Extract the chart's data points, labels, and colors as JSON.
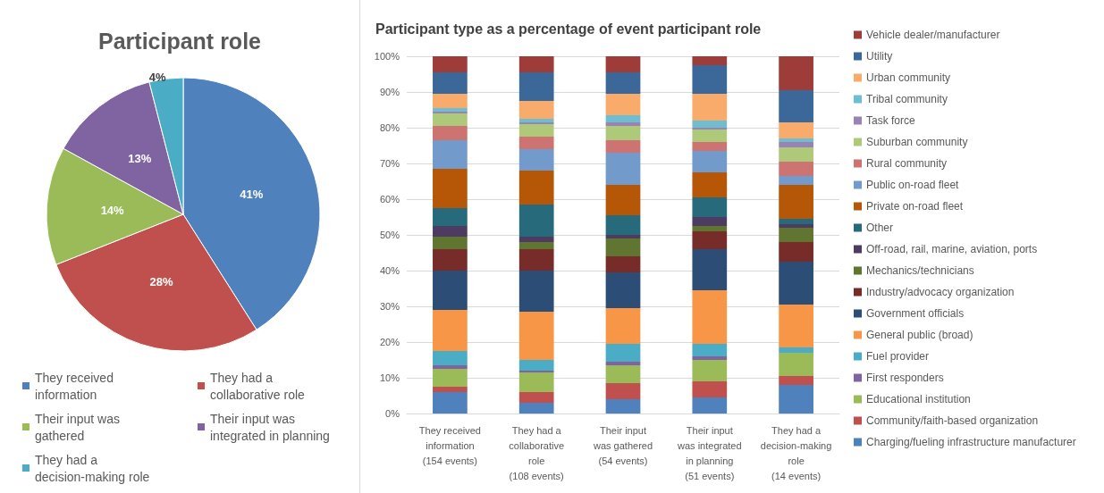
{
  "chart_data": [
    {
      "type": "pie",
      "title": "Participant role",
      "categories": [
        "They received information",
        "They had a collaborative role",
        "Their input was gathered",
        "Their input was integrated in planning",
        "They had a decision-making role"
      ],
      "values": [
        41,
        28,
        14,
        13,
        4
      ],
      "colors": [
        "#4f81bd",
        "#c0504d",
        "#9bbb59",
        "#8064a2",
        "#4bacc6"
      ],
      "value_labels": [
        "41%",
        "28%",
        "14%",
        "13%",
        "4%"
      ],
      "legend": "bottom"
    },
    {
      "type": "bar",
      "title": "Participant type as a percentage of event participant role",
      "categories": [
        "They received information (154 events)",
        "They had a collaborative role (108 events)",
        "Their input was gathered (54 events)",
        "Their input was integrated in planning (51 events)",
        "They had a decision-making role (14 events)"
      ],
      "series": [
        {
          "name": "Charging/fueling infrastructure manufacturer",
          "color": "#4f81bd",
          "values": [
            6,
            3,
            4,
            4.5,
            8
          ]
        },
        {
          "name": "Community/faith-based organization",
          "color": "#c0504d",
          "values": [
            1.5,
            3,
            4.5,
            4.5,
            2.5
          ]
        },
        {
          "name": "Educational institution",
          "color": "#9bbb59",
          "values": [
            5,
            5.5,
            5,
            6,
            6.5
          ]
        },
        {
          "name": "First responders",
          "color": "#8064a2",
          "values": [
            1,
            0.5,
            1,
            1,
            0
          ]
        },
        {
          "name": "Fuel provider",
          "color": "#4bacc6",
          "values": [
            4,
            3,
            5,
            3.5,
            1.5
          ]
        },
        {
          "name": "General public (broad)",
          "color": "#f79646",
          "values": [
            11.5,
            13.5,
            10,
            15,
            12
          ]
        },
        {
          "name": "Government officials",
          "color": "#2c4d75",
          "values": [
            11,
            11.5,
            10,
            11.5,
            12
          ]
        },
        {
          "name": "Industry/advocacy organization",
          "color": "#772c2a",
          "values": [
            6,
            6,
            4.5,
            5,
            5.5
          ]
        },
        {
          "name": "Mechanics/technicians",
          "color": "#5f7530",
          "values": [
            3.5,
            2,
            5,
            1.5,
            4
          ]
        },
        {
          "name": "Off-road, rail, marine, aviation, ports",
          "color": "#4d3b62",
          "values": [
            3,
            1.5,
            1,
            2.5,
            1
          ]
        },
        {
          "name": "Other",
          "color": "#276a7c",
          "values": [
            5,
            9,
            5.5,
            5.5,
            1.5
          ]
        },
        {
          "name": "Private on-road fleet",
          "color": "#b65708",
          "values": [
            11,
            9.5,
            8.5,
            7,
            9.5
          ]
        },
        {
          "name": "Public on-road fleet",
          "color": "#729aca",
          "values": [
            8,
            6,
            9,
            6,
            2.5
          ]
        },
        {
          "name": "Rural community",
          "color": "#cd7371",
          "values": [
            4,
            3.5,
            3.5,
            2.5,
            4
          ]
        },
        {
          "name": "Suburban community",
          "color": "#afc97a",
          "values": [
            3.5,
            3.5,
            4,
            3.5,
            4
          ]
        },
        {
          "name": "Task force",
          "color": "#9983b5",
          "values": [
            0.5,
            0.5,
            1,
            0.5,
            1.5
          ]
        },
        {
          "name": "Tribal community",
          "color": "#6fbdd1",
          "values": [
            1,
            1,
            2,
            2,
            1
          ]
        },
        {
          "name": "Urban community",
          "color": "#f9ab6b",
          "values": [
            4,
            5,
            6,
            7.5,
            4.5
          ]
        },
        {
          "name": "Utility",
          "color": "#3b6899",
          "values": [
            6,
            8,
            6,
            8,
            9
          ]
        },
        {
          "name": "Vehicle dealer/manufacturer",
          "color": "#9e3c3a",
          "values": [
            4.5,
            4.5,
            4.5,
            2.5,
            9.5
          ]
        }
      ],
      "stacked": true,
      "ylim": [
        0,
        100
      ],
      "yticks": [
        {
          "value": 0,
          "label": "0%"
        },
        {
          "value": 10,
          "label": "10%"
        },
        {
          "value": 20,
          "label": "20%"
        },
        {
          "value": 30,
          "label": "30%"
        },
        {
          "value": 40,
          "label": "40%"
        },
        {
          "value": 50,
          "label": "50%"
        },
        {
          "value": 60,
          "label": "60%"
        },
        {
          "value": 70,
          "label": "70%"
        },
        {
          "value": 80,
          "label": "80%"
        },
        {
          "value": 90,
          "label": "90%"
        },
        {
          "value": 100,
          "label": "100%"
        }
      ],
      "grid": "y",
      "legend": "right"
    }
  ]
}
